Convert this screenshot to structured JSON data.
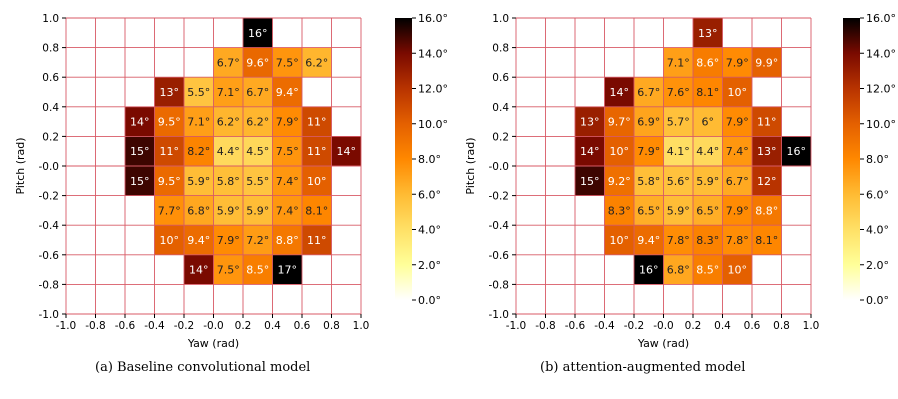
{
  "captions": [
    "(a) Baseline convolutional model",
    "(b) attention-augmented model"
  ],
  "colorbar": {
    "ticks": [
      "16.0°",
      "14.0°",
      "12.0°",
      "10.0°",
      "8.0°",
      "6.0°",
      "4.0°",
      "2.0°",
      "0.0°"
    ],
    "colors": [
      "#ffffff",
      "#ffff99",
      "#ffe066",
      "#ffbb33",
      "#ff8800",
      "#e46000",
      "#b83300",
      "#7a0a00",
      "#000000"
    ]
  },
  "chart_data": [
    {
      "type": "heatmap",
      "xlabel": "Yaw (rad)",
      "ylabel": "Pitch (rad)",
      "xlim": [
        -1.0,
        1.0
      ],
      "ylim": [
        -1.0,
        1.0
      ],
      "xticks": [
        "-1.0",
        "-0.8",
        "-0.6",
        "-0.4",
        "-0.2",
        "-0.0",
        "0.2",
        "0.4",
        "0.6",
        "0.8",
        "1.0"
      ],
      "yticks": [
        "1.0",
        "0.8",
        "0.6",
        "0.4",
        "0.2",
        "-0.0",
        "-0.2",
        "-0.4",
        "-0.6",
        "-0.8",
        "-1.0"
      ],
      "colorbar_range": [
        0,
        16
      ],
      "cells": [
        {
          "x": 0.3,
          "y": 0.9,
          "v": 16,
          "label": "16°"
        },
        {
          "x": 0.1,
          "y": 0.7,
          "v": 6.7,
          "label": "6.7°"
        },
        {
          "x": 0.3,
          "y": 0.7,
          "v": 9.6,
          "label": "9.6°"
        },
        {
          "x": 0.5,
          "y": 0.7,
          "v": 7.5,
          "label": "7.5°"
        },
        {
          "x": 0.7,
          "y": 0.7,
          "v": 6.2,
          "label": "6.2°"
        },
        {
          "x": -0.3,
          "y": 0.5,
          "v": 13,
          "label": "13°"
        },
        {
          "x": -0.1,
          "y": 0.5,
          "v": 5.5,
          "label": "5.5°"
        },
        {
          "x": 0.1,
          "y": 0.5,
          "v": 7.1,
          "label": "7.1°"
        },
        {
          "x": 0.3,
          "y": 0.5,
          "v": 6.7,
          "label": "6.7°"
        },
        {
          "x": 0.5,
          "y": 0.5,
          "v": 9.4,
          "label": "9.4°"
        },
        {
          "x": -0.5,
          "y": 0.3,
          "v": 14,
          "label": "14°"
        },
        {
          "x": -0.3,
          "y": 0.3,
          "v": 9.5,
          "label": "9.5°"
        },
        {
          "x": -0.1,
          "y": 0.3,
          "v": 7.1,
          "label": "7.1°"
        },
        {
          "x": 0.1,
          "y": 0.3,
          "v": 6.2,
          "label": "6.2°"
        },
        {
          "x": 0.3,
          "y": 0.3,
          "v": 6.2,
          "label": "6.2°"
        },
        {
          "x": 0.5,
          "y": 0.3,
          "v": 7.9,
          "label": "7.9°"
        },
        {
          "x": 0.7,
          "y": 0.3,
          "v": 11,
          "label": "11°"
        },
        {
          "x": -0.5,
          "y": 0.1,
          "v": 15,
          "label": "15°"
        },
        {
          "x": -0.3,
          "y": 0.1,
          "v": 11,
          "label": "11°"
        },
        {
          "x": -0.1,
          "y": 0.1,
          "v": 8.2,
          "label": "8.2°"
        },
        {
          "x": 0.1,
          "y": 0.1,
          "v": 4.4,
          "label": "4.4°"
        },
        {
          "x": 0.3,
          "y": 0.1,
          "v": 4.5,
          "label": "4.5°"
        },
        {
          "x": 0.5,
          "y": 0.1,
          "v": 7.5,
          "label": "7.5°"
        },
        {
          "x": 0.7,
          "y": 0.1,
          "v": 11,
          "label": "11°"
        },
        {
          "x": 0.9,
          "y": 0.1,
          "v": 14,
          "label": "14°"
        },
        {
          "x": -0.5,
          "y": -0.1,
          "v": 15,
          "label": "15°"
        },
        {
          "x": -0.3,
          "y": -0.1,
          "v": 9.5,
          "label": "9.5°"
        },
        {
          "x": -0.1,
          "y": -0.1,
          "v": 5.9,
          "label": "5.9°"
        },
        {
          "x": 0.1,
          "y": -0.1,
          "v": 5.8,
          "label": "5.8°"
        },
        {
          "x": 0.3,
          "y": -0.1,
          "v": 5.5,
          "label": "5.5°"
        },
        {
          "x": 0.5,
          "y": -0.1,
          "v": 7.4,
          "label": "7.4°"
        },
        {
          "x": 0.7,
          "y": -0.1,
          "v": 10,
          "label": "10°"
        },
        {
          "x": -0.3,
          "y": -0.3,
          "v": 7.7,
          "label": "7.7°"
        },
        {
          "x": -0.1,
          "y": -0.3,
          "v": 6.8,
          "label": "6.8°"
        },
        {
          "x": 0.1,
          "y": -0.3,
          "v": 5.9,
          "label": "5.9°"
        },
        {
          "x": 0.3,
          "y": -0.3,
          "v": 5.9,
          "label": "5.9°"
        },
        {
          "x": 0.5,
          "y": -0.3,
          "v": 7.4,
          "label": "7.4°"
        },
        {
          "x": 0.7,
          "y": -0.3,
          "v": 8.1,
          "label": "8.1°"
        },
        {
          "x": -0.3,
          "y": -0.5,
          "v": 10,
          "label": "10°"
        },
        {
          "x": -0.1,
          "y": -0.5,
          "v": 9.4,
          "label": "9.4°"
        },
        {
          "x": 0.1,
          "y": -0.5,
          "v": 7.9,
          "label": "7.9°"
        },
        {
          "x": 0.3,
          "y": -0.5,
          "v": 7.2,
          "label": "7.2°"
        },
        {
          "x": 0.5,
          "y": -0.5,
          "v": 8.8,
          "label": "8.8°"
        },
        {
          "x": 0.7,
          "y": -0.5,
          "v": 11,
          "label": "11°"
        },
        {
          "x": -0.1,
          "y": -0.7,
          "v": 14,
          "label": "14°"
        },
        {
          "x": 0.1,
          "y": -0.7,
          "v": 7.5,
          "label": "7.5°"
        },
        {
          "x": 0.3,
          "y": -0.7,
          "v": 8.5,
          "label": "8.5°"
        },
        {
          "x": 0.5,
          "y": -0.7,
          "v": 17,
          "label": "17°"
        }
      ]
    },
    {
      "type": "heatmap",
      "xlabel": "Yaw (rad)",
      "ylabel": "Pitch (rad)",
      "xlim": [
        -1.0,
        1.0
      ],
      "ylim": [
        -1.0,
        1.0
      ],
      "xticks": [
        "-1.0",
        "-0.8",
        "-0.6",
        "-0.4",
        "-0.2",
        "-0.0",
        "0.2",
        "0.4",
        "0.6",
        "0.8",
        "1.0"
      ],
      "yticks": [
        "1.0",
        "0.8",
        "0.6",
        "0.4",
        "0.2",
        "-0.0",
        "-0.2",
        "-0.4",
        "-0.6",
        "-0.8",
        "-1.0"
      ],
      "colorbar_range": [
        0,
        16
      ],
      "cells": [
        {
          "x": 0.3,
          "y": 0.9,
          "v": 13,
          "label": "13°"
        },
        {
          "x": 0.1,
          "y": 0.7,
          "v": 7.1,
          "label": "7.1°"
        },
        {
          "x": 0.3,
          "y": 0.7,
          "v": 8.6,
          "label": "8.6°"
        },
        {
          "x": 0.5,
          "y": 0.7,
          "v": 7.9,
          "label": "7.9°"
        },
        {
          "x": 0.7,
          "y": 0.7,
          "v": 9.9,
          "label": "9.9°"
        },
        {
          "x": -0.3,
          "y": 0.5,
          "v": 14,
          "label": "14°"
        },
        {
          "x": -0.1,
          "y": 0.5,
          "v": 6.7,
          "label": "6.7°"
        },
        {
          "x": 0.1,
          "y": 0.5,
          "v": 7.6,
          "label": "7.6°"
        },
        {
          "x": 0.3,
          "y": 0.5,
          "v": 8.1,
          "label": "8.1°"
        },
        {
          "x": 0.5,
          "y": 0.5,
          "v": 10,
          "label": "10°"
        },
        {
          "x": -0.5,
          "y": 0.3,
          "v": 13,
          "label": "13°"
        },
        {
          "x": -0.3,
          "y": 0.3,
          "v": 9.7,
          "label": "9.7°"
        },
        {
          "x": -0.1,
          "y": 0.3,
          "v": 6.9,
          "label": "6.9°"
        },
        {
          "x": 0.1,
          "y": 0.3,
          "v": 5.7,
          "label": "5.7°"
        },
        {
          "x": 0.3,
          "y": 0.3,
          "v": 6,
          "label": "6°"
        },
        {
          "x": 0.5,
          "y": 0.3,
          "v": 7.9,
          "label": "7.9°"
        },
        {
          "x": 0.7,
          "y": 0.3,
          "v": 11,
          "label": "11°"
        },
        {
          "x": -0.5,
          "y": 0.1,
          "v": 14,
          "label": "14°"
        },
        {
          "x": -0.3,
          "y": 0.1,
          "v": 10,
          "label": "10°"
        },
        {
          "x": -0.1,
          "y": 0.1,
          "v": 7.9,
          "label": "7.9°"
        },
        {
          "x": 0.1,
          "y": 0.1,
          "v": 4.1,
          "label": "4.1°"
        },
        {
          "x": 0.3,
          "y": 0.1,
          "v": 4.4,
          "label": "4.4°"
        },
        {
          "x": 0.5,
          "y": 0.1,
          "v": 7.4,
          "label": "7.4°"
        },
        {
          "x": 0.7,
          "y": 0.1,
          "v": 13,
          "label": "13°"
        },
        {
          "x": 0.9,
          "y": 0.1,
          "v": 16,
          "label": "16°"
        },
        {
          "x": -0.5,
          "y": -0.1,
          "v": 15,
          "label": "15°"
        },
        {
          "x": -0.3,
          "y": -0.1,
          "v": 9.2,
          "label": "9.2°"
        },
        {
          "x": -0.1,
          "y": -0.1,
          "v": 5.8,
          "label": "5.8°"
        },
        {
          "x": 0.1,
          "y": -0.1,
          "v": 5.6,
          "label": "5.6°"
        },
        {
          "x": 0.3,
          "y": -0.1,
          "v": 5.9,
          "label": "5.9°"
        },
        {
          "x": 0.5,
          "y": -0.1,
          "v": 6.7,
          "label": "6.7°"
        },
        {
          "x": 0.7,
          "y": -0.1,
          "v": 12,
          "label": "12°"
        },
        {
          "x": -0.3,
          "y": -0.3,
          "v": 8.3,
          "label": "8.3°"
        },
        {
          "x": -0.1,
          "y": -0.3,
          "v": 6.5,
          "label": "6.5°"
        },
        {
          "x": 0.1,
          "y": -0.3,
          "v": 5.9,
          "label": "5.9°"
        },
        {
          "x": 0.3,
          "y": -0.3,
          "v": 6.5,
          "label": "6.5°"
        },
        {
          "x": 0.5,
          "y": -0.3,
          "v": 7.9,
          "label": "7.9°"
        },
        {
          "x": 0.7,
          "y": -0.3,
          "v": 8.8,
          "label": "8.8°"
        },
        {
          "x": -0.3,
          "y": -0.5,
          "v": 10,
          "label": "10°"
        },
        {
          "x": -0.1,
          "y": -0.5,
          "v": 9.4,
          "label": "9.4°"
        },
        {
          "x": 0.1,
          "y": -0.5,
          "v": 7.8,
          "label": "7.8°"
        },
        {
          "x": 0.3,
          "y": -0.5,
          "v": 8.3,
          "label": "8.3°"
        },
        {
          "x": 0.5,
          "y": -0.5,
          "v": 7.8,
          "label": "7.8°"
        },
        {
          "x": 0.7,
          "y": -0.5,
          "v": 8.1,
          "label": "8.1°"
        },
        {
          "x": -0.1,
          "y": -0.7,
          "v": 16,
          "label": "16°"
        },
        {
          "x": 0.1,
          "y": -0.7,
          "v": 6.8,
          "label": "6.8°"
        },
        {
          "x": 0.3,
          "y": -0.7,
          "v": 8.5,
          "label": "8.5°"
        },
        {
          "x": 0.5,
          "y": -0.7,
          "v": 10,
          "label": "10°"
        }
      ]
    }
  ]
}
